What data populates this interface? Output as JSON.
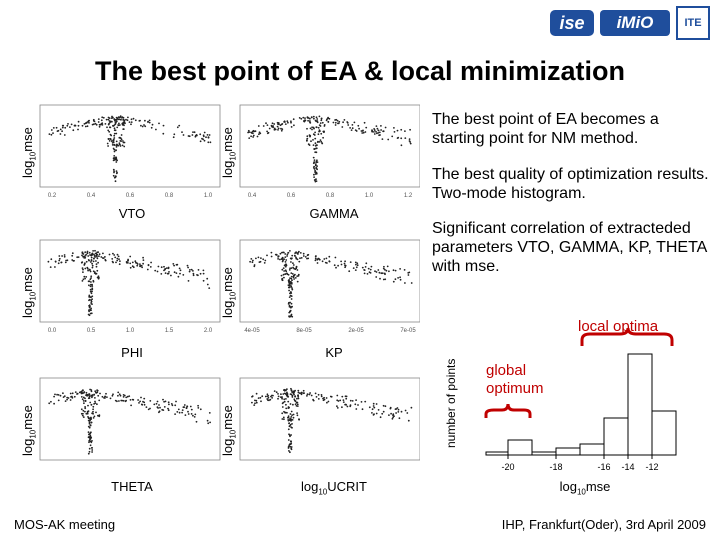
{
  "header": {
    "logo_left": "ise",
    "logo_mid": "iMiO",
    "logo_right": "ITE"
  },
  "title": "The best point of EA & local minimization",
  "bullets": [
    "The best point of EA becomes a starting point for NM method.",
    "The best quality of optimization results. Two-mode histogram.",
    "Significant correlation of extracteded parameters VTO, GAMMA, KP, THETA with mse."
  ],
  "scatter": {
    "ylabel_main": "log",
    "ylabel_sub": "10",
    "ylabel_tail": "mse",
    "plots": [
      {
        "label": "VTO",
        "ticks": [
          "0.2",
          "0.4",
          "0.6",
          "0.8",
          "1.0"
        ]
      },
      {
        "label": "GAMMA",
        "ticks": [
          "0.4",
          "0.6",
          "0.8",
          "1.0",
          "1.2"
        ]
      },
      {
        "label": "PHI",
        "ticks": [
          "0.0",
          "0.5",
          "1.0",
          "1.5",
          "2.0"
        ]
      },
      {
        "label": "KP",
        "ticks": [
          "4e-05",
          "8e-05",
          "2e-05",
          "7e-05"
        ]
      },
      {
        "label": "THETA",
        "ticks": [
          "",
          "",
          "",
          ""
        ]
      },
      {
        "label_main": "log",
        "label_sub": "10",
        "label_tail": "UCRIT",
        "ticks": [
          "",
          "",
          "",
          ""
        ]
      }
    ]
  },
  "histogram": {
    "ylabel": "number of points",
    "xlabel_main": "log",
    "xlabel_sub": "10",
    "xlabel_tail": "mse",
    "local_label": "local optima",
    "global_label_1": "global",
    "global_label_2": "optimum",
    "ticks": [
      "-20",
      "-18",
      "-16",
      "-14",
      "-12"
    ]
  },
  "footer": {
    "left": "MOS-AK meeting",
    "right": "IHP, Frankfurt(Oder), 3rd April 2009"
  },
  "colors": {
    "logo_blue": "#1f4e9c",
    "annotation_red": "#c00000"
  }
}
